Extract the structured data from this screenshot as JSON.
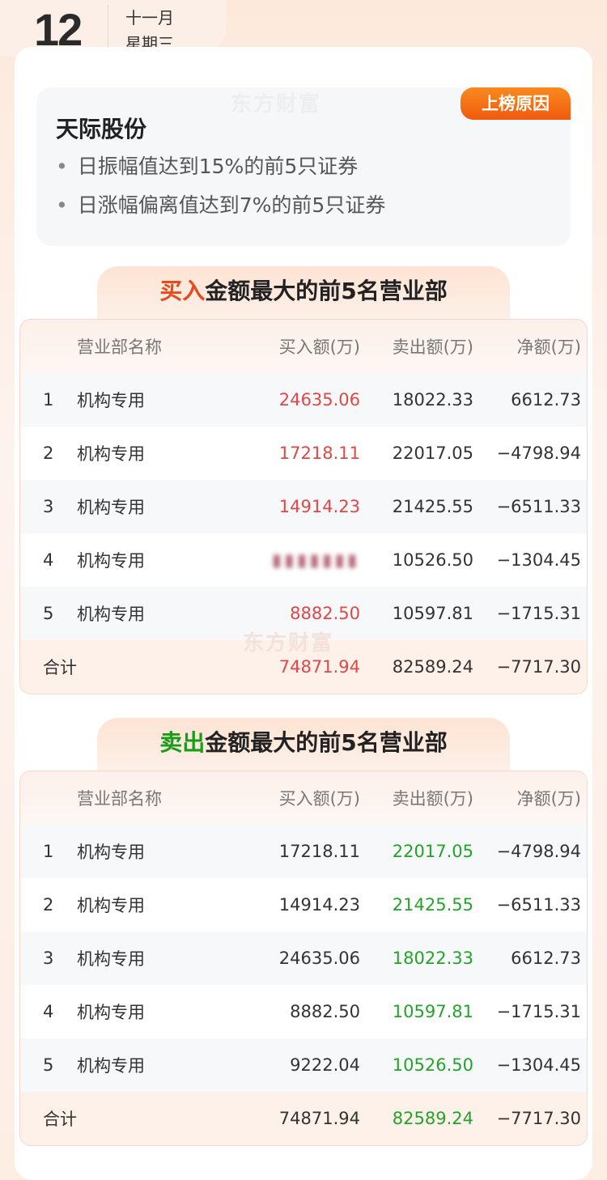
{
  "header": {
    "day": "12",
    "month": "十一月",
    "weekday": "星期三"
  },
  "watermark": "东方财富",
  "reason_card": {
    "tag": "上榜原因",
    "stock_name": "天际股份",
    "reasons": [
      "日振幅值达到15%的前5只证券",
      "日涨幅偏离值达到7%的前5只证券"
    ]
  },
  "colors": {
    "buy_accent": "#e8491d",
    "sell_accent": "#1a9c1a",
    "buy_value": "#e04747",
    "sell_value": "#24a32a",
    "tag": "#f2650f"
  },
  "buy_table": {
    "title_highlight": "买入",
    "title_rest": "金额最大的前5名营业部",
    "columns": [
      "营业部名称",
      "买入额(万)",
      "卖出额(万)",
      "净额(万)"
    ],
    "rows": [
      {
        "idx": "1",
        "name": "机构专用",
        "buy": "24635.06",
        "sell": "18022.33",
        "net": "6612.73"
      },
      {
        "idx": "2",
        "name": "机构专用",
        "buy": "17218.11",
        "sell": "22017.05",
        "net": "−4798.94"
      },
      {
        "idx": "3",
        "name": "机构专用",
        "buy": "14914.23",
        "sell": "21425.55",
        "net": "−6511.33"
      },
      {
        "idx": "4",
        "name": "机构专用",
        "buy": "",
        "sell": "10526.50",
        "net": "−1304.45"
      },
      {
        "idx": "5",
        "name": "机构专用",
        "buy": "8882.50",
        "sell": "10597.81",
        "net": "−1715.31"
      }
    ],
    "total": {
      "label": "合计",
      "buy": "74871.94",
      "sell": "82589.24",
      "net": "−7717.30"
    }
  },
  "sell_table": {
    "title_highlight": "卖出",
    "title_rest": "金额最大的前5名营业部",
    "columns": [
      "营业部名称",
      "买入额(万)",
      "卖出额(万)",
      "净额(万)"
    ],
    "rows": [
      {
        "idx": "1",
        "name": "机构专用",
        "buy": "17218.11",
        "sell": "22017.05",
        "net": "−4798.94"
      },
      {
        "idx": "2",
        "name": "机构专用",
        "buy": "14914.23",
        "sell": "21425.55",
        "net": "−6511.33"
      },
      {
        "idx": "3",
        "name": "机构专用",
        "buy": "24635.06",
        "sell": "18022.33",
        "net": "6612.73"
      },
      {
        "idx": "4",
        "name": "机构专用",
        "buy": "8882.50",
        "sell": "10597.81",
        "net": "−1715.31"
      },
      {
        "idx": "5",
        "name": "机构专用",
        "buy": "9222.04",
        "sell": "10526.50",
        "net": "−1304.45"
      }
    ],
    "total": {
      "label": "合计",
      "buy": "74871.94",
      "sell": "82589.24",
      "net": "−7717.30"
    }
  }
}
